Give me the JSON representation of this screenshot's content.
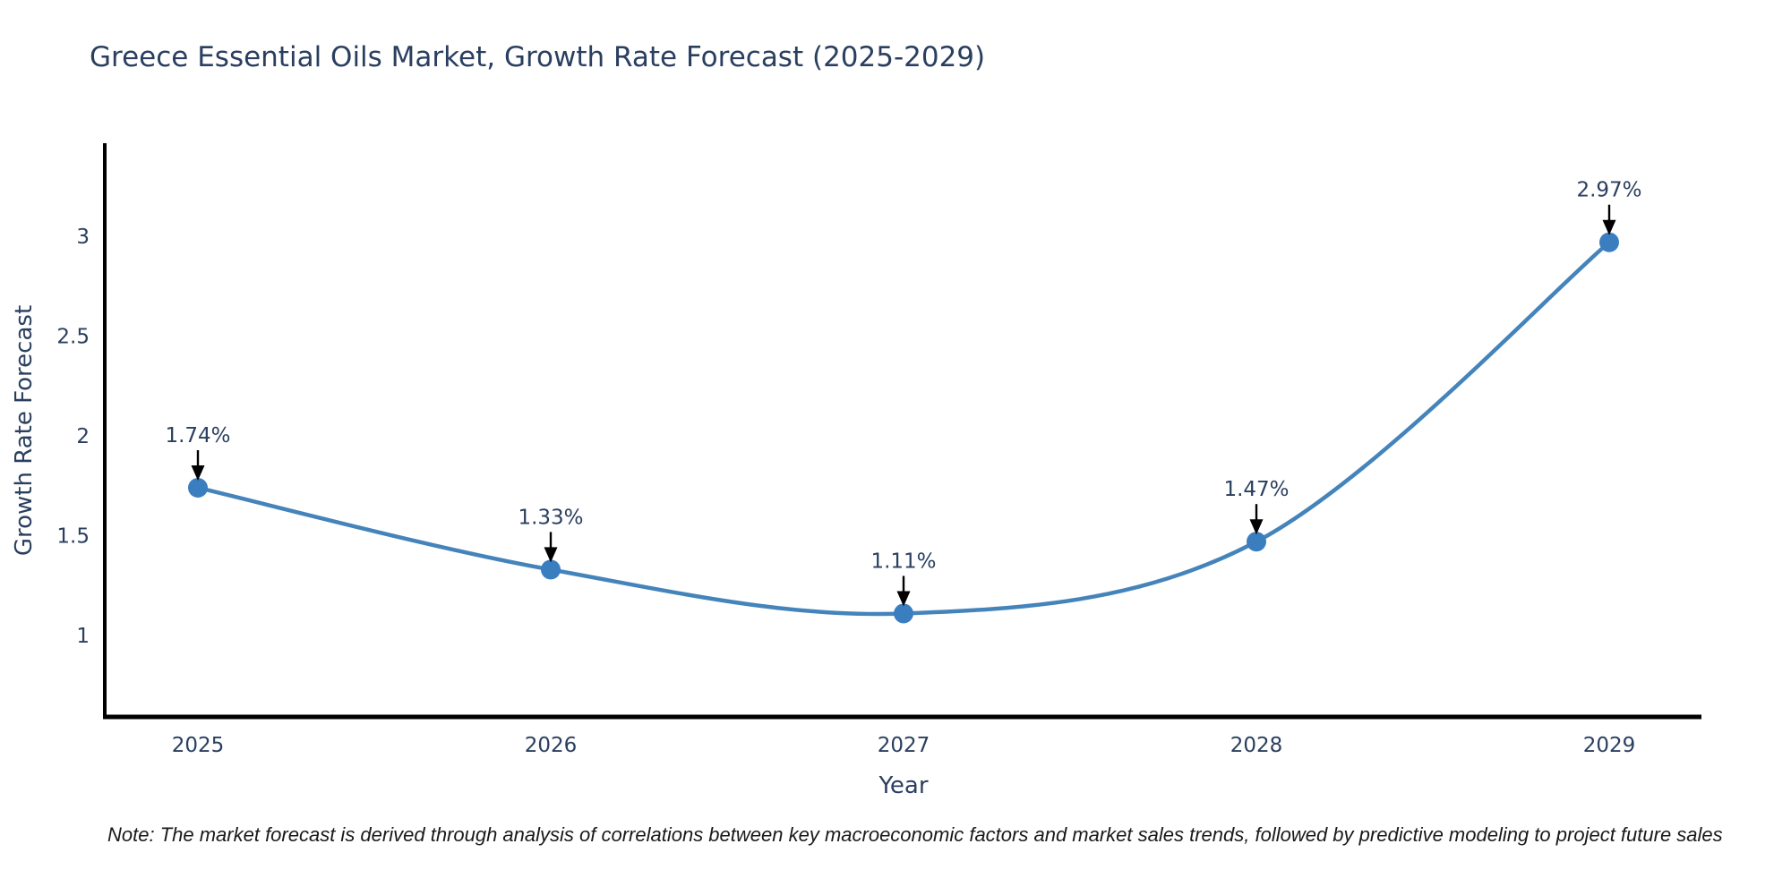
{
  "page": {
    "background": "#ffffff"
  },
  "chart_data": {
    "type": "line",
    "line_shape": "spline",
    "title": "Greece Essential Oils Market, Growth Rate Forecast (2025-2029)",
    "xlabel": "Year",
    "ylabel": "Growth Rate Forecast",
    "categories": [
      "2025",
      "2026",
      "2027",
      "2028",
      "2029"
    ],
    "series": [
      {
        "name": "Growth Rate Forecast",
        "values": [
          1.74,
          1.33,
          1.11,
          1.47,
          2.97
        ]
      }
    ],
    "point_labels": [
      "1.74%",
      "1.33%",
      "1.11%",
      "1.47%",
      "2.97%"
    ],
    "yticks": [
      "1",
      "1.5",
      "2",
      "2.5",
      "3"
    ],
    "ytick_values": [
      1,
      1.5,
      2,
      2.5,
      3
    ],
    "ylim": [
      0.6,
      3.47
    ],
    "grid": false,
    "legend_position": "none",
    "colors": {
      "line": "#4484bb",
      "marker": "#3b7ec0",
      "axis_line": "#000000",
      "text": "#2a3f5f",
      "annotation_arrow": "#000000"
    }
  },
  "footnote": {
    "text": "Note: The market forecast is derived through analysis of correlations between key macroeconomic factors and market sales trends, followed by predictive modeling to project future sales"
  }
}
